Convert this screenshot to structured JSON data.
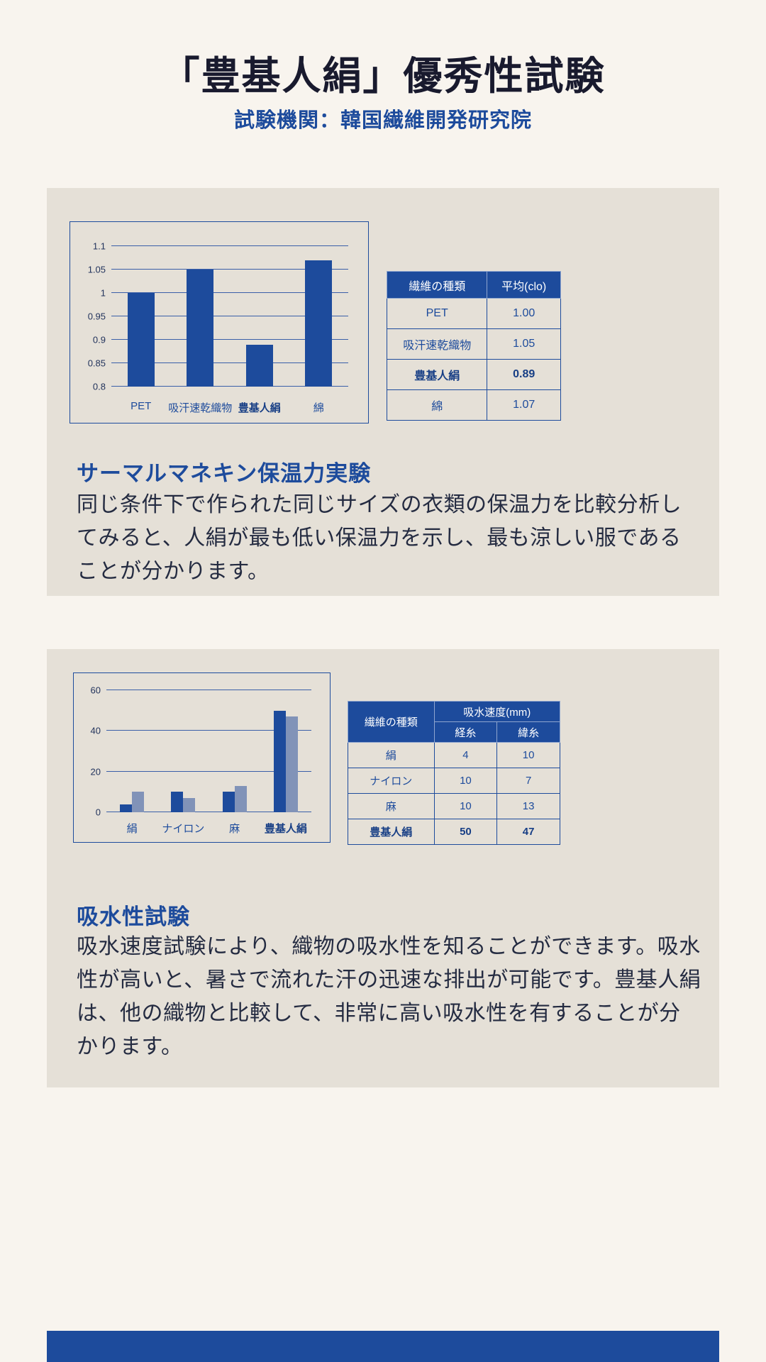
{
  "page": {
    "title": "「豊基人絹」優秀性試験",
    "subtitle": "試験機関：韓国繊維開発研究院"
  },
  "colors": {
    "accent": "#1d4b9c",
    "page_bg": "#f8f4ee",
    "panel_bg": "#e5e0d7",
    "bar_primary": "#1d4b9c",
    "bar_secondary": "#8193b8",
    "table_header_bg": "#1d4b9c",
    "table_header_text": "#ffffff"
  },
  "section1": {
    "heading": "サーマルマネキン保温力実験",
    "body": "同じ条件下で作られた同じサイズの衣類の保温力を比較分析してみると、人絹が最も低い保温力を示し、最も涼しい服であることが分かります。",
    "table": {
      "headers": [
        "繊維の種類",
        "平均(clo)"
      ],
      "rows": [
        [
          "PET",
          "1.00"
        ],
        [
          "吸汗速乾織物",
          "1.05"
        ],
        [
          "豊基人絹",
          "0.89"
        ],
        [
          "綿",
          "1.07"
        ]
      ]
    }
  },
  "section2": {
    "heading": "吸水性試験",
    "body": "吸水速度試験により、織物の吸水性を知ることができます。吸水性が高いと、暑さで流れた汗の迅速な排出が可能です。豊基人絹は、他の織物と比較して、非常に高い吸水性を有することが分かります。",
    "table": {
      "col0_header": "繊維の種類",
      "group_header": "吸水速度(mm)",
      "sub_headers": [
        "経糸",
        "緯糸"
      ],
      "rows": [
        [
          "絹",
          "4",
          "10"
        ],
        [
          "ナイロン",
          "10",
          "7"
        ],
        [
          "麻",
          "10",
          "13"
        ],
        [
          "豊基人絹",
          "50",
          "47"
        ]
      ]
    }
  },
  "chart_data": [
    {
      "type": "bar",
      "title": "サーマルマネキン保温力実験",
      "categories": [
        "PET",
        "吸汗速乾織物",
        "豊基人絹",
        "綿"
      ],
      "values": [
        1.0,
        1.05,
        0.89,
        1.07
      ],
      "ylim": [
        0.8,
        1.1
      ],
      "yticks": [
        1.1,
        1.05,
        1,
        0.95,
        0.9,
        0.85,
        0.8
      ],
      "bold_category": "豊基人絹",
      "ylabel": "clo",
      "grid": true,
      "legend": false
    },
    {
      "type": "bar",
      "title": "吸水速度(mm)",
      "categories": [
        "絹",
        "ナイロン",
        "麻",
        "豊基人絹"
      ],
      "series": [
        {
          "name": "経糸",
          "values": [
            4,
            10,
            10,
            50
          ]
        },
        {
          "name": "緯糸",
          "values": [
            10,
            7,
            13,
            47
          ]
        }
      ],
      "ylim": [
        0,
        60
      ],
      "yticks": [
        60,
        40,
        20,
        0
      ],
      "bold_category": "豊基人絹",
      "grid": true,
      "legend": false
    }
  ]
}
